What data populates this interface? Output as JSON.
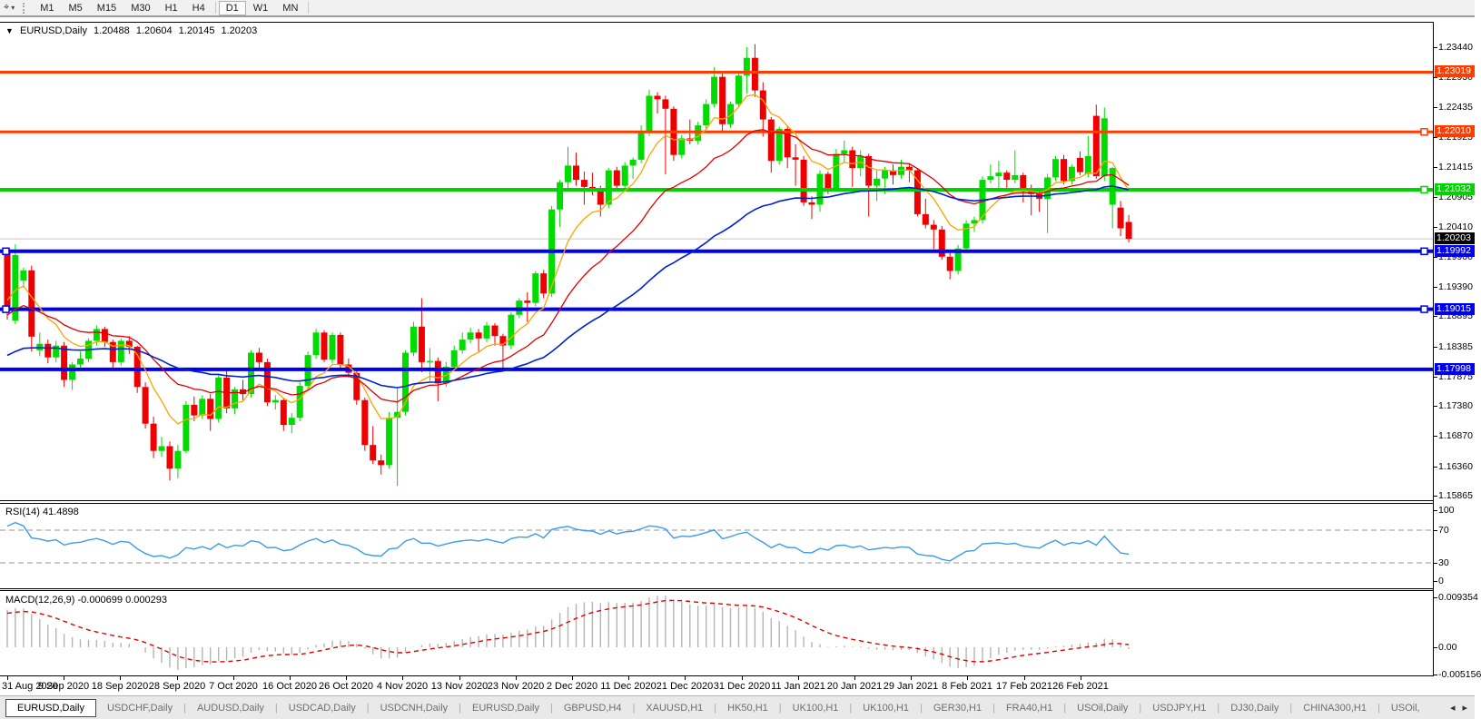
{
  "toolbar": {
    "cursor_icon": "crosshair-tool",
    "timeframes": [
      "M1",
      "M5",
      "M15",
      "M30",
      "H1",
      "H4",
      "D1",
      "W1",
      "MN"
    ],
    "active_timeframe": "D1"
  },
  "chart": {
    "title": {
      "symbol": "EURUSD,Daily",
      "open": "1.20488",
      "high": "1.20604",
      "low": "1.20145",
      "close": "1.20203"
    }
  },
  "rsi_panel": {
    "label": "RSI(14)",
    "value": "41.4898",
    "axis_labels": [
      {
        "v": 100,
        "t": "100"
      },
      {
        "v": 70,
        "t": "70"
      },
      {
        "v": 30,
        "t": "30"
      },
      {
        "v": 0,
        "t": "0"
      }
    ]
  },
  "macd_panel": {
    "label": "MACD(12,26,9)",
    "value_main": "-0.000699",
    "value_signal": "0.000293",
    "axis_labels": [
      {
        "v": 0.009354,
        "t": "0.009354"
      },
      {
        "v": 0,
        "t": "0.00"
      },
      {
        "v": -0.005156,
        "t": "-0.005156"
      }
    ]
  },
  "price_axis_ticks": [
    1.2344,
    1.2293,
    1.22435,
    1.21925,
    1.21415,
    1.20905,
    1.2041,
    1.199,
    1.1939,
    1.18895,
    1.18385,
    1.17875,
    1.1738,
    1.1687,
    1.1636,
    1.15865
  ],
  "chart_data": {
    "type": "candlestick",
    "symbol": "EURUSD",
    "timeframe": "Daily",
    "x_dates": [
      "31 Aug 2020",
      "9 Sep 2020",
      "18 Sep 2020",
      "28 Sep 2020",
      "7 Oct 2020",
      "16 Oct 2020",
      "26 Oct 2020",
      "4 Nov 2020",
      "13 Nov 2020",
      "23 Nov 2020",
      "2 Dec 2020",
      "11 Dec 2020",
      "21 Dec 2020",
      "31 Dec 2020",
      "11 Jan 2021",
      "20 Jan 2021",
      "29 Jan 2021",
      "8 Feb 2021",
      "17 Feb 2021",
      "26 Feb 2021"
    ],
    "ylim": [
      1.15805,
      1.23854
    ],
    "bull_color": "#00DC00",
    "bear_color": "#EE0000",
    "candles": [
      [
        1.1998,
        1.2006,
        1.1884,
        1.1905
      ],
      [
        1.1882,
        1.2011,
        1.1876,
        1.1993
      ],
      [
        1.195,
        1.1972,
        1.1938,
        1.1967
      ],
      [
        1.1967,
        1.1975,
        1.183,
        1.1855
      ],
      [
        1.1832,
        1.1862,
        1.1822,
        1.1843
      ],
      [
        1.1843,
        1.185,
        1.181,
        1.182
      ],
      [
        1.182,
        1.1848,
        1.1812,
        1.184
      ],
      [
        1.184,
        1.1846,
        1.177,
        1.1782
      ],
      [
        1.1782,
        1.1812,
        1.1765,
        1.1808
      ],
      [
        1.1808,
        1.183,
        1.18,
        1.1818
      ],
      [
        1.1818,
        1.1852,
        1.1812,
        1.1848
      ],
      [
        1.1848,
        1.1874,
        1.184,
        1.1868
      ],
      [
        1.1868,
        1.1872,
        1.1838,
        1.1846
      ],
      [
        1.1846,
        1.185,
        1.18,
        1.1812
      ],
      [
        1.1812,
        1.1852,
        1.1806,
        1.1848
      ],
      [
        1.1848,
        1.1856,
        1.1826,
        1.1838
      ],
      [
        1.1838,
        1.184,
        1.176,
        1.177
      ],
      [
        1.177,
        1.1778,
        1.17,
        1.1708
      ],
      [
        1.1708,
        1.172,
        1.165,
        1.1662
      ],
      [
        1.1662,
        1.1686,
        1.1652,
        1.167
      ],
      [
        1.167,
        1.1678,
        1.1612,
        1.1632
      ],
      [
        1.1632,
        1.1672,
        1.1616,
        1.1662
      ],
      [
        1.1662,
        1.1746,
        1.1658,
        1.174
      ],
      [
        1.174,
        1.1754,
        1.1712,
        1.1722
      ],
      [
        1.1722,
        1.1756,
        1.1716,
        1.175
      ],
      [
        1.175,
        1.1758,
        1.1696,
        1.1716
      ],
      [
        1.1716,
        1.179,
        1.171,
        1.1786
      ],
      [
        1.1786,
        1.1798,
        1.1726,
        1.1734
      ],
      [
        1.1734,
        1.177,
        1.1724,
        1.1766
      ],
      [
        1.1766,
        1.1782,
        1.1748,
        1.1758
      ],
      [
        1.1758,
        1.1832,
        1.1752,
        1.1828
      ],
      [
        1.1828,
        1.1836,
        1.18,
        1.1812
      ],
      [
        1.1812,
        1.1818,
        1.1738,
        1.1744
      ],
      [
        1.1744,
        1.1756,
        1.1732,
        1.1748
      ],
      [
        1.1748,
        1.1752,
        1.1696,
        1.1706
      ],
      [
        1.1706,
        1.1726,
        1.1692,
        1.1718
      ],
      [
        1.1718,
        1.1778,
        1.1712,
        1.1772
      ],
      [
        1.1772,
        1.183,
        1.1766,
        1.1824
      ],
      [
        1.1824,
        1.1868,
        1.1818,
        1.1862
      ],
      [
        1.1862,
        1.1866,
        1.1812,
        1.1816
      ],
      [
        1.1816,
        1.1862,
        1.181,
        1.1858
      ],
      [
        1.1858,
        1.1862,
        1.18,
        1.1808
      ],
      [
        1.1808,
        1.1818,
        1.1786,
        1.1794
      ],
      [
        1.1794,
        1.1802,
        1.174,
        1.1748
      ],
      [
        1.1748,
        1.1752,
        1.1662,
        1.1672
      ],
      [
        1.1672,
        1.1704,
        1.164,
        1.1646
      ],
      [
        1.1646,
        1.1656,
        1.1622,
        1.1638
      ],
      [
        1.1638,
        1.1728,
        1.1632,
        1.1718
      ],
      [
        1.1718,
        1.1768,
        1.1603,
        1.1728
      ],
      [
        1.1728,
        1.1832,
        1.1722,
        1.1828
      ],
      [
        1.1828,
        1.188,
        1.1822,
        1.1872
      ],
      [
        1.1872,
        1.192,
        1.1795,
        1.1812
      ],
      [
        1.1812,
        1.1836,
        1.178,
        1.1814
      ],
      [
        1.1814,
        1.182,
        1.1746,
        1.1776
      ],
      [
        1.1776,
        1.1812,
        1.177,
        1.1804
      ],
      [
        1.1804,
        1.184,
        1.1798,
        1.1832
      ],
      [
        1.1832,
        1.1862,
        1.1826,
        1.185
      ],
      [
        1.185,
        1.187,
        1.1844,
        1.1862
      ],
      [
        1.1862,
        1.1868,
        1.183,
        1.1852
      ],
      [
        1.1852,
        1.188,
        1.1846,
        1.1874
      ],
      [
        1.1874,
        1.1878,
        1.184,
        1.1856
      ],
      [
        1.1856,
        1.186,
        1.18,
        1.184
      ],
      [
        1.184,
        1.1896,
        1.1834,
        1.1892
      ],
      [
        1.1892,
        1.192,
        1.1886,
        1.1916
      ],
      [
        1.1916,
        1.193,
        1.188,
        1.1912
      ],
      [
        1.1912,
        1.1966,
        1.1906,
        1.1962
      ],
      [
        1.1962,
        1.1968,
        1.192,
        1.1928
      ],
      [
        1.1928,
        1.2076,
        1.1922,
        1.207
      ],
      [
        1.207,
        1.212,
        1.204,
        1.2116
      ],
      [
        1.2116,
        1.2176,
        1.2106,
        1.2144
      ],
      [
        1.2144,
        1.2166,
        1.211,
        1.212
      ],
      [
        1.212,
        1.2134,
        1.2078,
        1.2108
      ],
      [
        1.2108,
        1.2132,
        1.2094,
        1.2104
      ],
      [
        1.2104,
        1.211,
        1.2058,
        1.2078
      ],
      [
        1.2078,
        1.214,
        1.2072,
        1.2136
      ],
      [
        1.2136,
        1.2142,
        1.21,
        1.211
      ],
      [
        1.211,
        1.215,
        1.2104,
        1.2144
      ],
      [
        1.2144,
        1.2158,
        1.2122,
        1.2154
      ],
      [
        1.2154,
        1.2212,
        1.2148,
        1.22
      ],
      [
        1.22,
        1.2272,
        1.2194,
        1.2262
      ],
      [
        1.2262,
        1.2268,
        1.2232,
        1.2256
      ],
      [
        1.2256,
        1.2262,
        1.2129,
        1.224
      ],
      [
        1.224,
        1.2244,
        1.2152,
        1.2162
      ],
      [
        1.2162,
        1.2196,
        1.2156,
        1.219
      ],
      [
        1.219,
        1.2222,
        1.218,
        1.2186
      ],
      [
        1.2186,
        1.2218,
        1.218,
        1.2212
      ],
      [
        1.2212,
        1.2256,
        1.2206,
        1.2248
      ],
      [
        1.2248,
        1.231,
        1.2242,
        1.2294
      ],
      [
        1.2294,
        1.2304,
        1.22,
        1.2214
      ],
      [
        1.2214,
        1.2252,
        1.2208,
        1.2248
      ],
      [
        1.2248,
        1.2302,
        1.2242,
        1.2296
      ],
      [
        1.2296,
        1.2344,
        1.2266,
        1.2326
      ],
      [
        1.2326,
        1.2349,
        1.226,
        1.2271
      ],
      [
        1.2271,
        1.2285,
        1.2193,
        1.2222
      ],
      [
        1.2222,
        1.2226,
        1.2132,
        1.2152
      ],
      [
        1.2152,
        1.221,
        1.2146,
        1.2206
      ],
      [
        1.2206,
        1.2212,
        1.214,
        1.2158
      ],
      [
        1.2158,
        1.218,
        1.211,
        1.2154
      ],
      [
        1.2154,
        1.216,
        1.2076,
        1.2082
      ],
      [
        1.2082,
        1.2092,
        1.2054,
        1.2078
      ],
      [
        1.2078,
        1.2136,
        1.2066,
        1.213
      ],
      [
        1.213,
        1.2134,
        1.2096,
        1.2106
      ],
      [
        1.2106,
        1.2172,
        1.21,
        1.2164
      ],
      [
        1.2164,
        1.2186,
        1.215,
        1.217
      ],
      [
        1.217,
        1.2176,
        1.2108,
        1.214
      ],
      [
        1.214,
        1.217,
        1.2126,
        1.216
      ],
      [
        1.216,
        1.2164,
        1.2058,
        1.211
      ],
      [
        1.211,
        1.2136,
        1.2084,
        1.2122
      ],
      [
        1.2122,
        1.2142,
        1.2096,
        1.2136
      ],
      [
        1.2136,
        1.2146,
        1.2112,
        1.2128
      ],
      [
        1.2128,
        1.2154,
        1.2122,
        1.2142
      ],
      [
        1.2142,
        1.2148,
        1.2116,
        1.2136
      ],
      [
        1.2136,
        1.214,
        1.2058,
        1.2062
      ],
      [
        1.2062,
        1.2088,
        1.2038,
        1.2044
      ],
      [
        1.2044,
        1.2052,
        1.2003,
        1.2036
      ],
      [
        1.2036,
        1.2042,
        1.1985,
        1.199
      ],
      [
        1.199,
        1.1996,
        1.1952,
        1.1966
      ],
      [
        1.1966,
        1.201,
        1.196,
        1.2004
      ],
      [
        1.2004,
        1.2052,
        1.1998,
        1.2046
      ],
      [
        1.2046,
        1.2058,
        1.2032,
        1.2052
      ],
      [
        1.2052,
        1.2126,
        1.2046,
        1.212
      ],
      [
        1.212,
        1.2146,
        1.2114,
        1.2126
      ],
      [
        1.2126,
        1.2152,
        1.2106,
        1.2132
      ],
      [
        1.2132,
        1.2136,
        1.2102,
        1.212
      ],
      [
        1.212,
        1.217,
        1.2114,
        1.2128
      ],
      [
        1.2128,
        1.2132,
        1.2082,
        1.2105
      ],
      [
        1.2105,
        1.2112,
        1.206,
        1.2096
      ],
      [
        1.2096,
        1.2102,
        1.2066,
        1.2088
      ],
      [
        1.2088,
        1.213,
        1.203,
        1.2124
      ],
      [
        1.2124,
        1.216,
        1.2118,
        1.2155
      ],
      [
        1.2155,
        1.2162,
        1.2112,
        1.2118
      ],
      [
        1.2118,
        1.2146,
        1.2112,
        1.2142
      ],
      [
        1.2157,
        1.2168,
        1.2128,
        1.2133
      ],
      [
        1.213,
        1.2194,
        1.2124,
        1.216
      ],
      [
        1.2228,
        1.2247,
        1.2122,
        1.2126
      ],
      [
        1.2126,
        1.2242,
        1.2118,
        1.2224
      ],
      [
        1.2078,
        1.2142,
        1.2038,
        1.214
      ],
      [
        1.2073,
        1.2084,
        1.2025,
        1.2038
      ],
      [
        1.20488,
        1.20604,
        1.20145,
        1.20203
      ]
    ],
    "hlines": [
      {
        "price": 1.23019,
        "label": "1.23019",
        "color": "#FF3C00",
        "width": 3,
        "markers": []
      },
      {
        "price": 1.2201,
        "label": "1.22010",
        "color": "#FF3C00",
        "width": 3,
        "markers": [
          "right"
        ]
      },
      {
        "price": 1.21032,
        "label": "1.21032",
        "color": "#00D300",
        "width": 4,
        "markers": [
          "right"
        ]
      },
      {
        "price": 1.19992,
        "label": "1.19992",
        "color": "#0000F0",
        "width": 4,
        "markers": [
          "left",
          "right"
        ]
      },
      {
        "price": 1.19015,
        "label": "1.19015",
        "color": "#0000F0",
        "width": 4,
        "markers": [
          "left",
          "right"
        ]
      },
      {
        "price": 1.17998,
        "label": "1.17998",
        "color": "#0000F0",
        "width": 4,
        "markers": []
      }
    ],
    "current_price": {
      "label": "1.20203",
      "price": 1.20203,
      "box_color": "#000000",
      "line_color": "#C8C8C8"
    },
    "moving_averages": [
      {
        "period": 8,
        "color": "#FFA400",
        "seed": 1.192,
        "width": 1.3
      },
      {
        "period": 20,
        "color": "#E00000",
        "seed": 1.189,
        "width": 1.3
      },
      {
        "period": 50,
        "color": "#0022CC",
        "seed": 1.182,
        "width": 1.6
      }
    ],
    "rsi": {
      "period": 14,
      "color": "#3D9BE9",
      "levels": [
        70,
        30
      ],
      "seed_gain": 0.0024,
      "seed_loss": 0.0008
    },
    "macd": {
      "fast": 12,
      "slow": 26,
      "signal": 9,
      "hist_color": "#B4B4B4",
      "signal_color": "#E00000",
      "seed_fast": 1.189,
      "seed_slow": 1.1815,
      "seed_signal": 0.0062
    }
  },
  "bottom_tabs": {
    "items": [
      "EURUSD,Daily",
      "USDCHF,Daily",
      "AUDUSD,Daily",
      "USDCAD,Daily",
      "USDCNH,Daily",
      "EURUSD,Daily",
      "GBPUSD,H4",
      "XAUUSD,H1",
      "HK50,H1",
      "UK100,H1",
      "UK100,H1",
      "GER30,H1",
      "FRA40,H1",
      "USOil,Daily",
      "USDJPY,H1",
      "DJ30,Daily",
      "CHINA300,H1",
      "USOil,"
    ],
    "active_index": 0,
    "scroll_left": "◂",
    "scroll_right": "▸"
  }
}
